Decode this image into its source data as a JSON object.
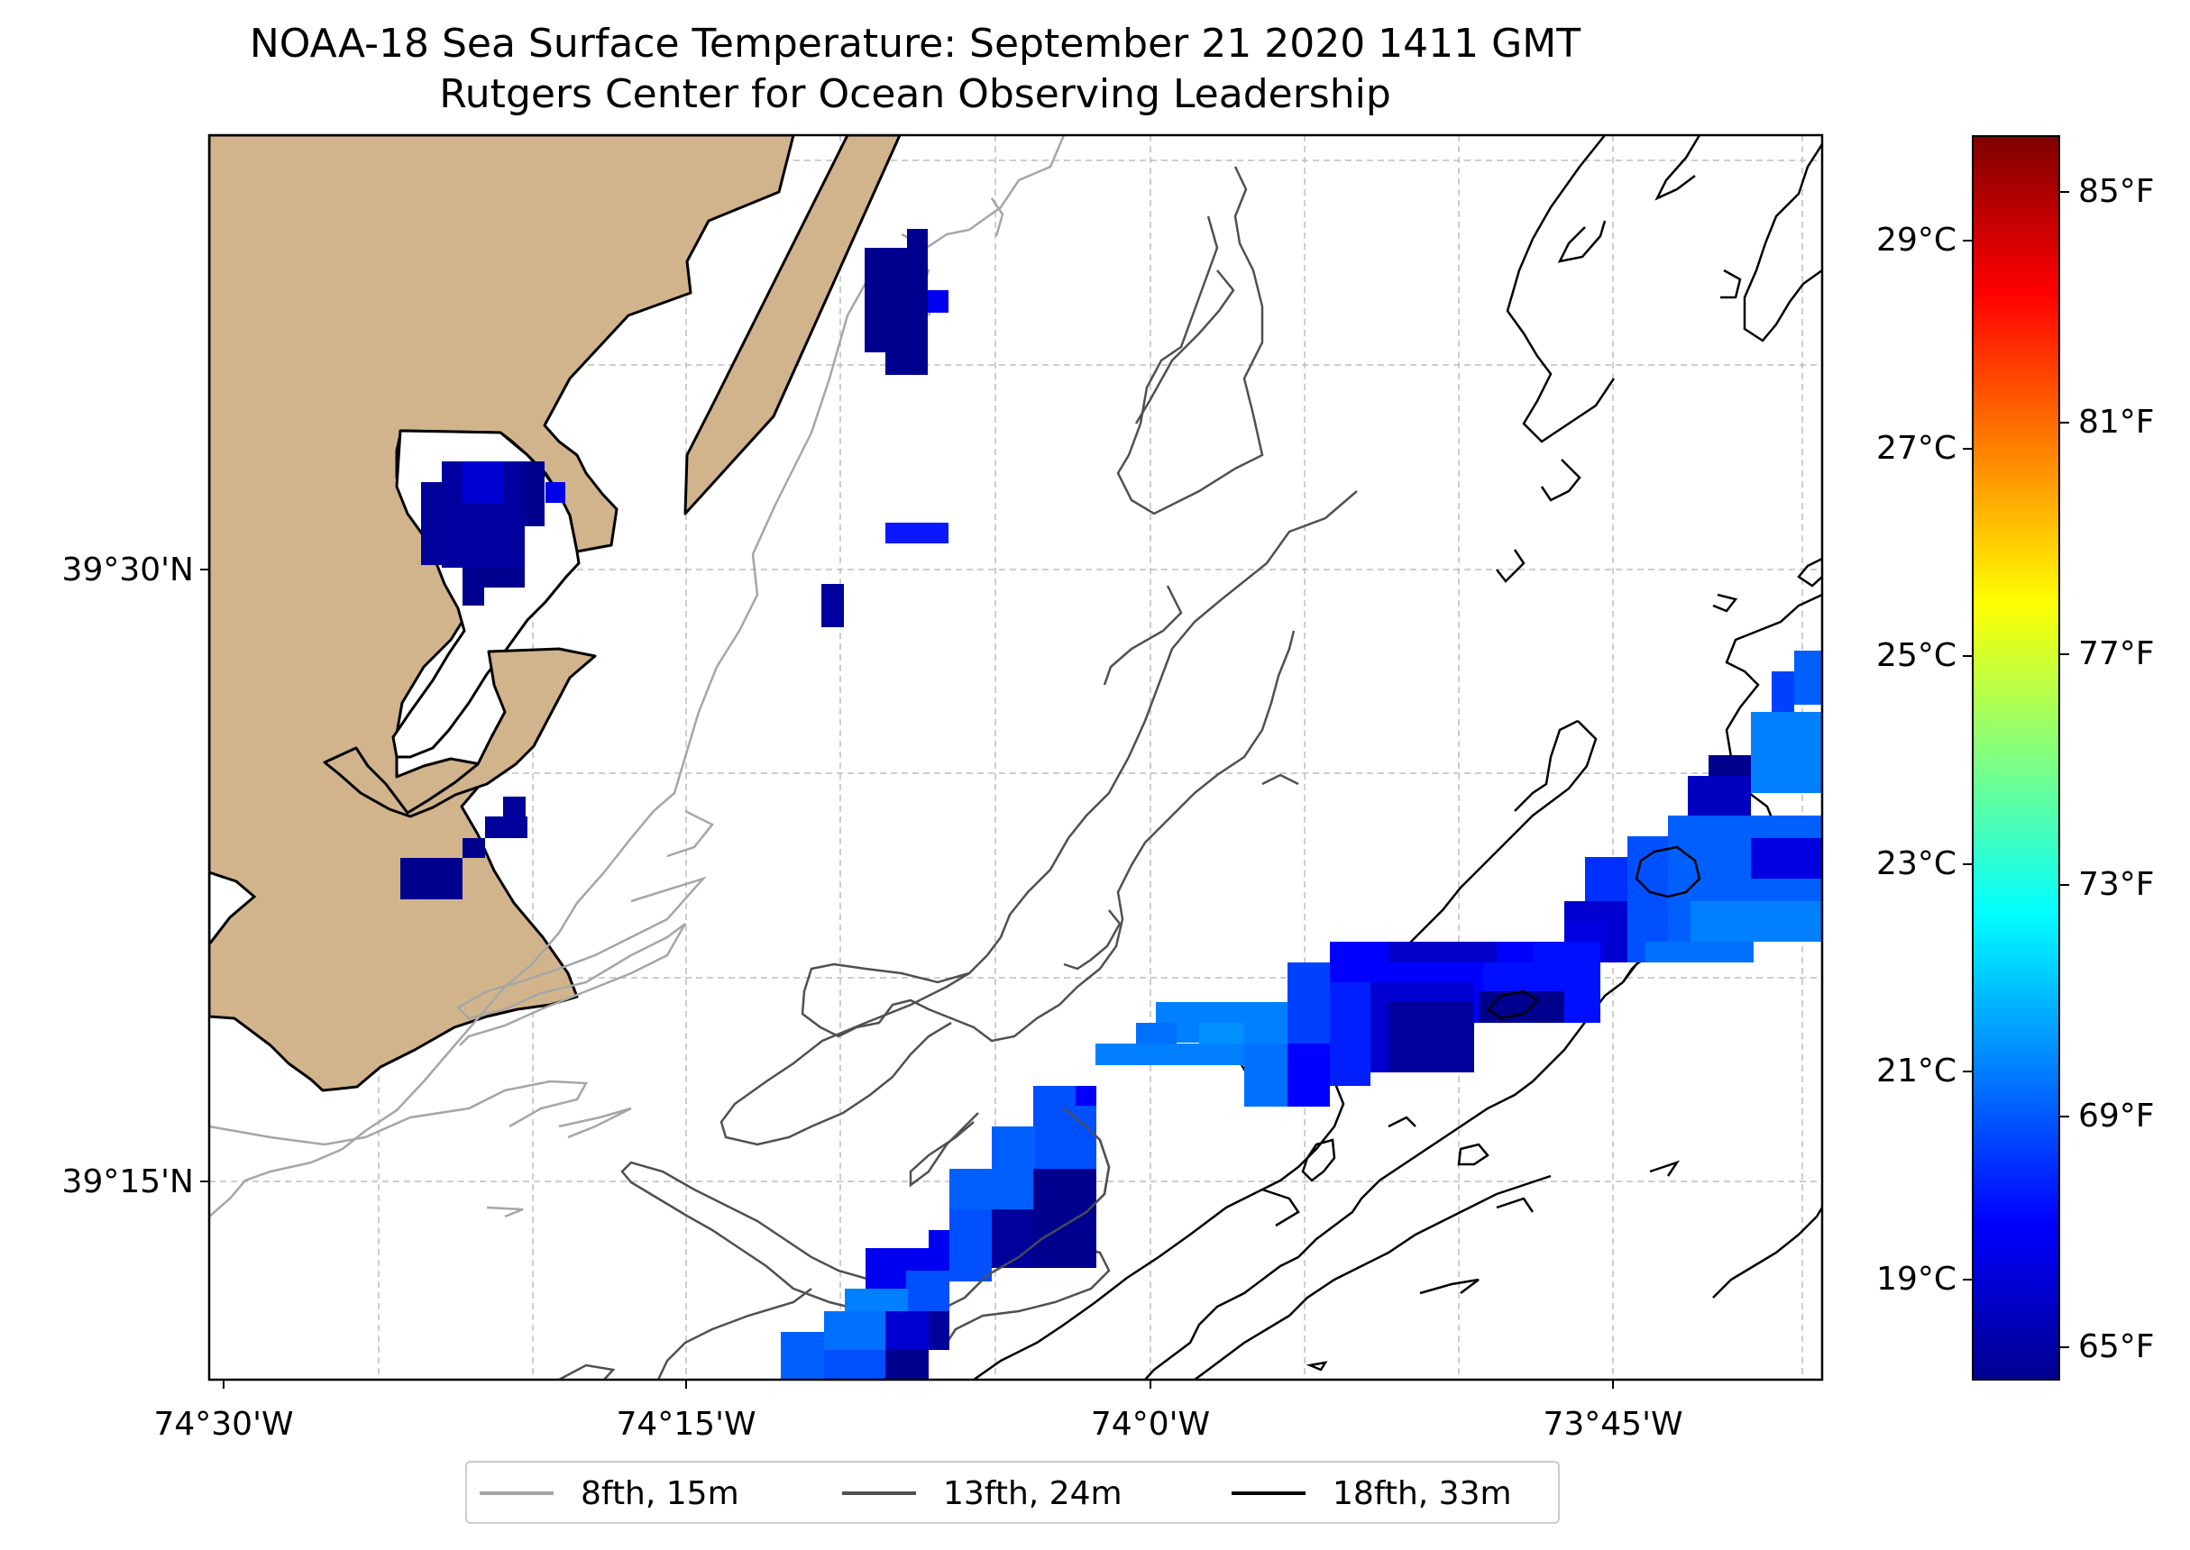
{
  "title": {
    "line1": "NOAA-18 Sea Surface Temperature: September 21 2020 1411 GMT",
    "line2": "Rutgers Center for Ocean Observing Leadership"
  },
  "map": {
    "lat_labels": [
      "39°30'N",
      "39°15'N"
    ],
    "lon_labels": [
      "74°30'W",
      "74°15'W",
      "74°0'W",
      "73°45'W"
    ],
    "land_color": "#d2b48c",
    "ocean_color": "#ffffff"
  },
  "colorbar": {
    "celsius_labels": [
      "29°C",
      "27°C",
      "25°C",
      "23°C",
      "21°C",
      "19°C"
    ],
    "fahrenheit_labels": [
      "85°F",
      "81°F",
      "77°F",
      "73°F",
      "69°F",
      "65°F"
    ],
    "colormap": "jet",
    "colors": [
      "#00008f",
      "#0000ff",
      "#0080ff",
      "#00ffff",
      "#80ff80",
      "#ffff00",
      "#ff8000",
      "#ff0000",
      "#800000"
    ]
  },
  "legend": {
    "items": [
      {
        "label": "8fth, 15m",
        "color": "#a6a6a6"
      },
      {
        "label": "13fth, 24m",
        "color": "#505050"
      },
      {
        "label": "18fth, 33m",
        "color": "#000000"
      }
    ]
  }
}
